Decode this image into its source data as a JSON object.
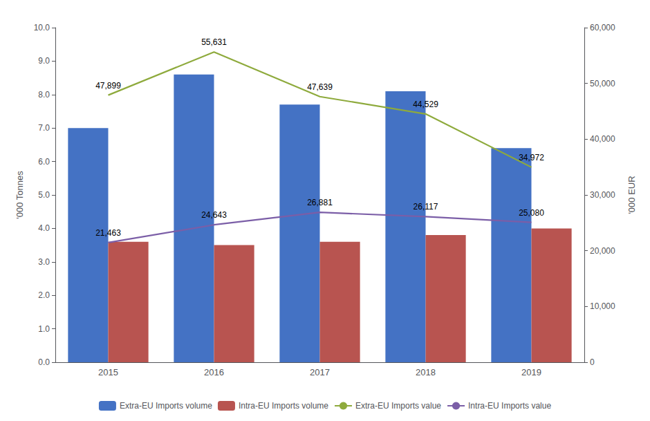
{
  "chart_data": {
    "type": "bar",
    "categories": [
      "2015",
      "2016",
      "2017",
      "2018",
      "2019"
    ],
    "ylabel": "'000 Tonnes",
    "y2label": "'000 EUR",
    "ylim": [
      0,
      10.0
    ],
    "yticks": [
      {
        "value": 0.0,
        "label": "0.0"
      },
      {
        "value": 1.0,
        "label": "1.0"
      },
      {
        "value": 2.0,
        "label": "2.0"
      },
      {
        "value": 3.0,
        "label": "3.0"
      },
      {
        "value": 4.0,
        "label": "4.0"
      },
      {
        "value": 5.0,
        "label": "5.0"
      },
      {
        "value": 6.0,
        "label": "6.0"
      },
      {
        "value": 7.0,
        "label": "7.0"
      },
      {
        "value": 8.0,
        "label": "8.0"
      },
      {
        "value": 9.0,
        "label": "9.0"
      },
      {
        "value": 10.0,
        "label": "10.0"
      }
    ],
    "y2lim": [
      0,
      60000
    ],
    "y2ticks": [
      0,
      {
        "value": 10000,
        "label": "10,000"
      },
      {
        "value": 20000,
        "label": "20,000"
      },
      {
        "value": 30000,
        "label": "30,000"
      },
      {
        "value": 40000,
        "label": "40,000"
      },
      {
        "value": 50000,
        "label": "50,000"
      },
      {
        "value": 60000,
        "label": "60,000"
      }
    ],
    "grid": false,
    "legend": "bottom",
    "series": [
      {
        "name": "Extra-EU Imports volume",
        "type": "bar",
        "color": "#4472C4",
        "values": [
          7.0,
          8.6,
          7.7,
          8.1,
          6.4
        ]
      },
      {
        "name": "Intra-EU Imports volume",
        "type": "bar",
        "color": "#B85450",
        "values": [
          3.6,
          3.5,
          3.6,
          3.8,
          4.0
        ]
      },
      {
        "name": "Extra-EU Imports value",
        "type": "line",
        "axis": "y2",
        "color": "#8EAA3C",
        "values": [
          47899,
          55631,
          47639,
          44529,
          34972
        ],
        "value_labels": [
          "47,899",
          "55,631",
          "47,639",
          "44,529",
          "34,972"
        ],
        "data_labels": true
      },
      {
        "name": "Intra-EU Imports value",
        "type": "line",
        "axis": "y2",
        "color": "#7B5EA7",
        "values": [
          21463,
          24643,
          26881,
          26117,
          25080
        ],
        "value_labels": [
          "21,463",
          "24,643",
          "26,881",
          "26,117",
          "25,080"
        ],
        "data_labels": true
      }
    ]
  }
}
